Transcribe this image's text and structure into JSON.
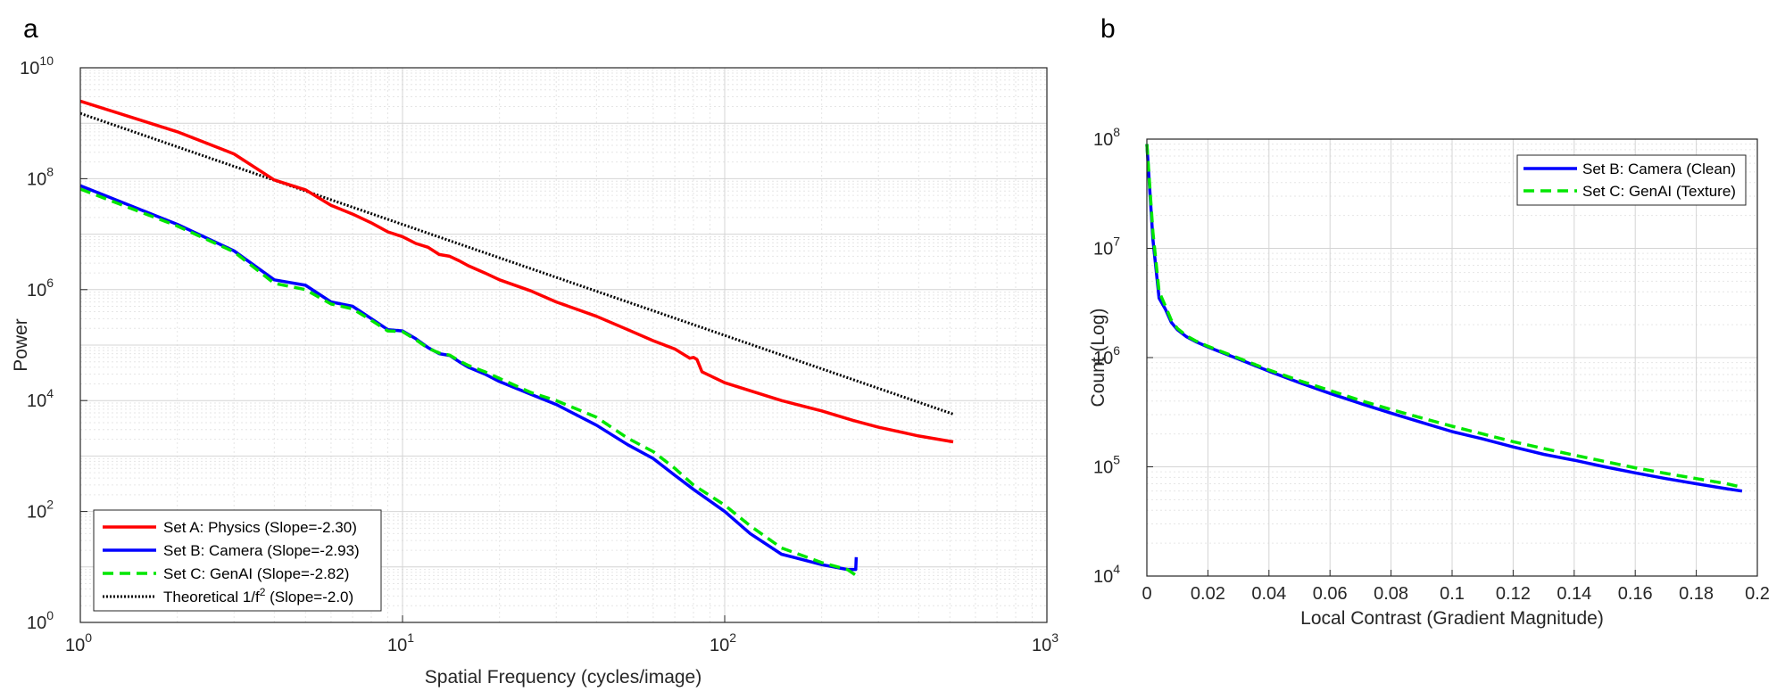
{
  "panels": [
    {
      "letter": "a",
      "chart_data": {
        "type": "line",
        "title": "",
        "xlabel": "Spatial Frequency (cycles/image)",
        "ylabel": "Power",
        "xscale": "log",
        "yscale": "log",
        "xlim": [
          1,
          1000
        ],
        "ylim": [
          1,
          10000000000
        ],
        "grid": true,
        "legend_position": "bottom-left",
        "x_ticks": [
          {
            "base": "10",
            "exp": "0",
            "value": 1
          },
          {
            "base": "10",
            "exp": "1",
            "value": 10
          },
          {
            "base": "10",
            "exp": "2",
            "value": 100
          },
          {
            "base": "10",
            "exp": "3",
            "value": 1000
          }
        ],
        "y_ticks": [
          {
            "base": "10",
            "exp": "0",
            "value": 1
          },
          {
            "base": "10",
            "exp": "2",
            "value": 100
          },
          {
            "base": "10",
            "exp": "4",
            "value": 10000
          },
          {
            "base": "10",
            "exp": "6",
            "value": 1000000
          },
          {
            "base": "10",
            "exp": "8",
            "value": 100000000
          },
          {
            "base": "10",
            "exp": "10",
            "value": 10000000000
          }
        ],
        "series": [
          {
            "name": "Set A: Physics (Slope=-2.30)",
            "color": "#ff0000",
            "style": "solid",
            "x": [
              1,
              2,
              3,
              4,
              5,
              6,
              7,
              8,
              9,
              10,
              11,
              12,
              13,
              14,
              15,
              16,
              18,
              20,
              25,
              30,
              40,
              50,
              60,
              70,
              78,
              80,
              82,
              85,
              100,
              120,
              150,
              200,
              250,
              300,
              400,
              512
            ],
            "y": [
              2500000000,
              700000000,
              280000000,
              95000000,
              63000000,
              33000000,
              23000000,
              16000000,
              11000000,
              9000000,
              6800000,
              5800000,
              4300000,
              4000000,
              3300000,
              2700000,
              2000000,
              1500000,
              950000,
              600000,
              330000,
              190000,
              120000,
              85000,
              58000,
              60000,
              55000,
              33000,
              21000,
              15000,
              10000,
              6500,
              4400,
              3300,
              2300,
              1800
            ]
          },
          {
            "name": "Set B: Camera (Slope=-2.93)",
            "color": "#0000ff",
            "style": "solid",
            "x": [
              1,
              2,
              3,
              4,
              5,
              6,
              7,
              8,
              9,
              10,
              11,
              12,
              13,
              14,
              15,
              16,
              18,
              20,
              25,
              30,
              40,
              50,
              60,
              70,
              80,
              100,
              120,
              150,
              200,
              240,
              255,
              256
            ],
            "y": [
              75000000,
              15000000,
              5000000,
              1500000,
              1200000,
              600000,
              500000,
              300000,
              190000,
              180000,
              130000,
              90000,
              70000,
              65000,
              50000,
              40000,
              30000,
              22000,
              13000,
              8500,
              3600,
              1600,
              900,
              450,
              250,
              100,
              40,
              17,
              11,
              9,
              9,
              15
            ]
          },
          {
            "name": "Set C: GenAI (Slope=-2.82)",
            "color": "#00e600",
            "style": "dashed",
            "x": [
              1,
              2,
              3,
              4,
              5,
              6,
              7,
              8,
              9,
              10,
              11,
              12,
              13,
              14,
              15,
              16,
              18,
              20,
              25,
              30,
              40,
              50,
              60,
              70,
              80,
              100,
              120,
              150,
              200,
              240,
              256
            ],
            "y": [
              65000000,
              14000000,
              4800000,
              1300000,
              1000000,
              550000,
              450000,
              280000,
              180000,
              175000,
              125000,
              88000,
              72000,
              66000,
              52000,
              43000,
              33000,
              25000,
              14000,
              10000,
              5000,
              2100,
              1200,
              600,
              300,
              130,
              55,
              22,
              12,
              9,
              7
            ]
          },
          {
            "name": "Theoretical 1/f² (Slope=-2.0)",
            "label_main": "Theoretical 1/f",
            "label_sup": "2",
            "label_tail": " (Slope=-2.0)",
            "color": "#000000",
            "style": "dotted",
            "x": [
              1,
              512
            ],
            "y": [
              1500000000,
              5700
            ]
          }
        ]
      }
    },
    {
      "letter": "b",
      "chart_data": {
        "type": "line",
        "title": "",
        "xlabel": "Local Contrast (Gradient Magnitude)",
        "ylabel": "Count (Log)",
        "xscale": "linear",
        "yscale": "log",
        "xlim": [
          0,
          0.2
        ],
        "ylim": [
          10000,
          100000000
        ],
        "grid": true,
        "legend_position": "top-right",
        "x_ticks": [
          {
            "label": "0",
            "value": 0
          },
          {
            "label": "0.02",
            "value": 0.02
          },
          {
            "label": "0.04",
            "value": 0.04
          },
          {
            "label": "0.06",
            "value": 0.06
          },
          {
            "label": "0.08",
            "value": 0.08
          },
          {
            "label": "0.1",
            "value": 0.1
          },
          {
            "label": "0.12",
            "value": 0.12
          },
          {
            "label": "0.14",
            "value": 0.14
          },
          {
            "label": "0.16",
            "value": 0.16
          },
          {
            "label": "0.18",
            "value": 0.18
          },
          {
            "label": "0.2",
            "value": 0.2
          }
        ],
        "y_ticks": [
          {
            "base": "10",
            "exp": "4",
            "value": 10000
          },
          {
            "base": "10",
            "exp": "5",
            "value": 100000
          },
          {
            "base": "10",
            "exp": "6",
            "value": 1000000
          },
          {
            "base": "10",
            "exp": "7",
            "value": 10000000
          },
          {
            "base": "10",
            "exp": "8",
            "value": 100000000
          }
        ],
        "series": [
          {
            "name": "Set B: Camera (Clean)",
            "color": "#0000ff",
            "style": "solid",
            "x": [
              0,
              0.002,
              0.004,
              0.006,
              0.008,
              0.01,
              0.013,
              0.016,
              0.02,
              0.025,
              0.03,
              0.04,
              0.05,
              0.06,
              0.07,
              0.08,
              0.09,
              0.1,
              0.11,
              0.12,
              0.13,
              0.14,
              0.15,
              0.16,
              0.17,
              0.18,
              0.19,
              0.195
            ],
            "y": [
              90000000,
              12000000,
              3500000,
              2800000,
              2100000,
              1800000,
              1550000,
              1400000,
              1250000,
              1100000,
              970000,
              750000,
              590000,
              470000,
              380000,
              310000,
              255000,
              210000,
              180000,
              152000,
              130000,
              115000,
              100000,
              88000,
              78000,
              70000,
              63000,
              60000
            ]
          },
          {
            "name": "Set C: GenAI (Texture)",
            "color": "#00e600",
            "style": "dashed",
            "x": [
              0,
              0.002,
              0.004,
              0.006,
              0.008,
              0.01,
              0.013,
              0.016,
              0.02,
              0.025,
              0.03,
              0.04,
              0.05,
              0.06,
              0.07,
              0.08,
              0.09,
              0.1,
              0.11,
              0.12,
              0.13,
              0.14,
              0.15,
              0.16,
              0.17,
              0.18,
              0.19,
              0.195
            ],
            "y": [
              90000000,
              14000000,
              4000000,
              3000000,
              2200000,
              1850000,
              1580000,
              1420000,
              1270000,
              1120000,
              990000,
              770000,
              615000,
              500000,
              405000,
              335000,
              280000,
              235000,
              200000,
              170000,
              147000,
              128000,
              112000,
              98000,
              87000,
              78000,
              70000,
              65000
            ]
          }
        ]
      }
    }
  ]
}
